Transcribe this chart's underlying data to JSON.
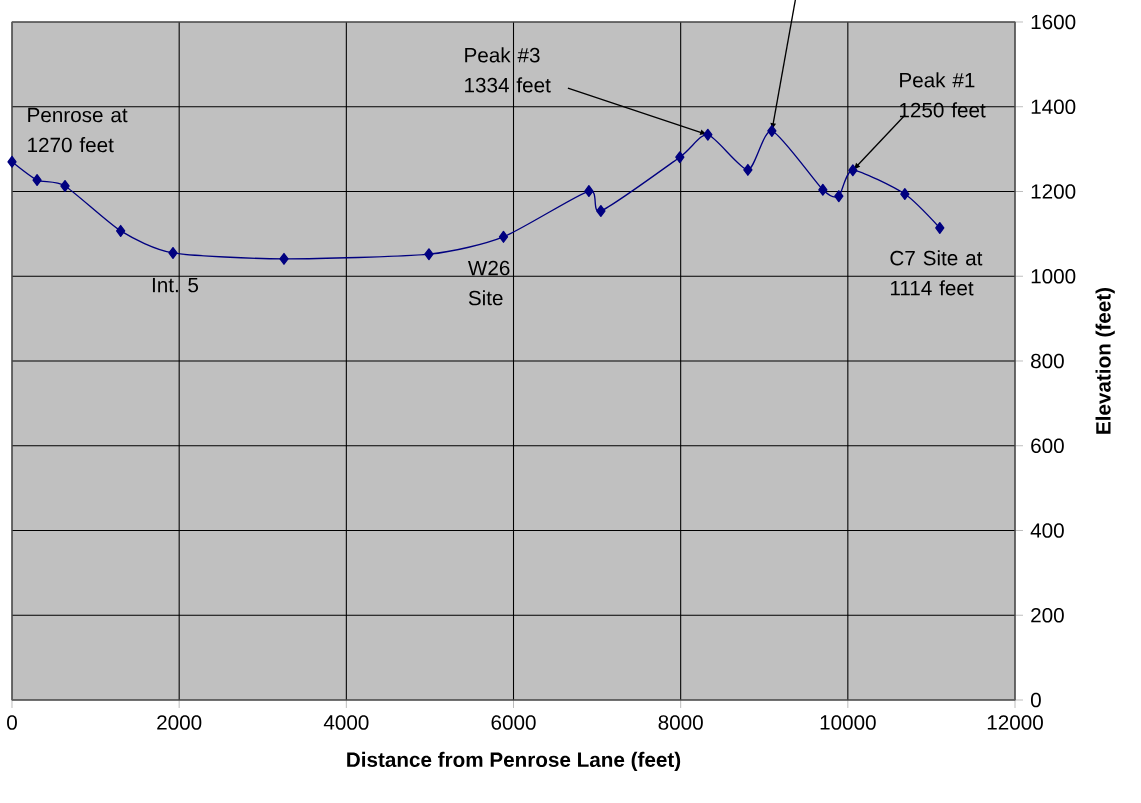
{
  "chart_data": {
    "type": "line",
    "xlabel": "Distance from Penrose Lane (feet)",
    "ylabel": "Elevation (feet)",
    "x": [
      0,
      300,
      634,
      1300,
      1926,
      3254,
      4988,
      5880,
      6902,
      7045,
      7990,
      8325,
      8804,
      9091,
      9701,
      9892,
      10060,
      10682,
      11100
    ],
    "values": [
      1270,
      1227,
      1213,
      1107,
      1055,
      1041,
      1052,
      1093,
      1201,
      1154,
      1281,
      1334,
      1251,
      1343,
      1204,
      1189,
      1250,
      1194,
      1114
    ],
    "color": "#000080",
    "marker": "diamond",
    "grid": true,
    "xlim": [
      0,
      12000
    ],
    "ylim": [
      0,
      1600
    ],
    "xticks": [
      0,
      2000,
      4000,
      6000,
      8000,
      10000,
      12000
    ],
    "yticks": [
      0,
      200,
      400,
      600,
      800,
      1000,
      1200,
      1400,
      1600
    ],
    "annotations": [
      {
        "text": "Penrose at 1270 feet",
        "x": 0,
        "y": 1270
      },
      {
        "text": "Int. 5",
        "x": 1926,
        "y": 1055
      },
      {
        "text": "W26 Site",
        "x": 5880,
        "y": 1093
      },
      {
        "text": "Peak #3 1334 feet",
        "x": 8325,
        "y": 1334
      },
      {
        "text": "Peak #1 1250 feet",
        "x": 10060,
        "y": 1250
      },
      {
        "text": "C7 Site at 1114 feet",
        "x": 11100,
        "y": 1114
      }
    ]
  }
}
